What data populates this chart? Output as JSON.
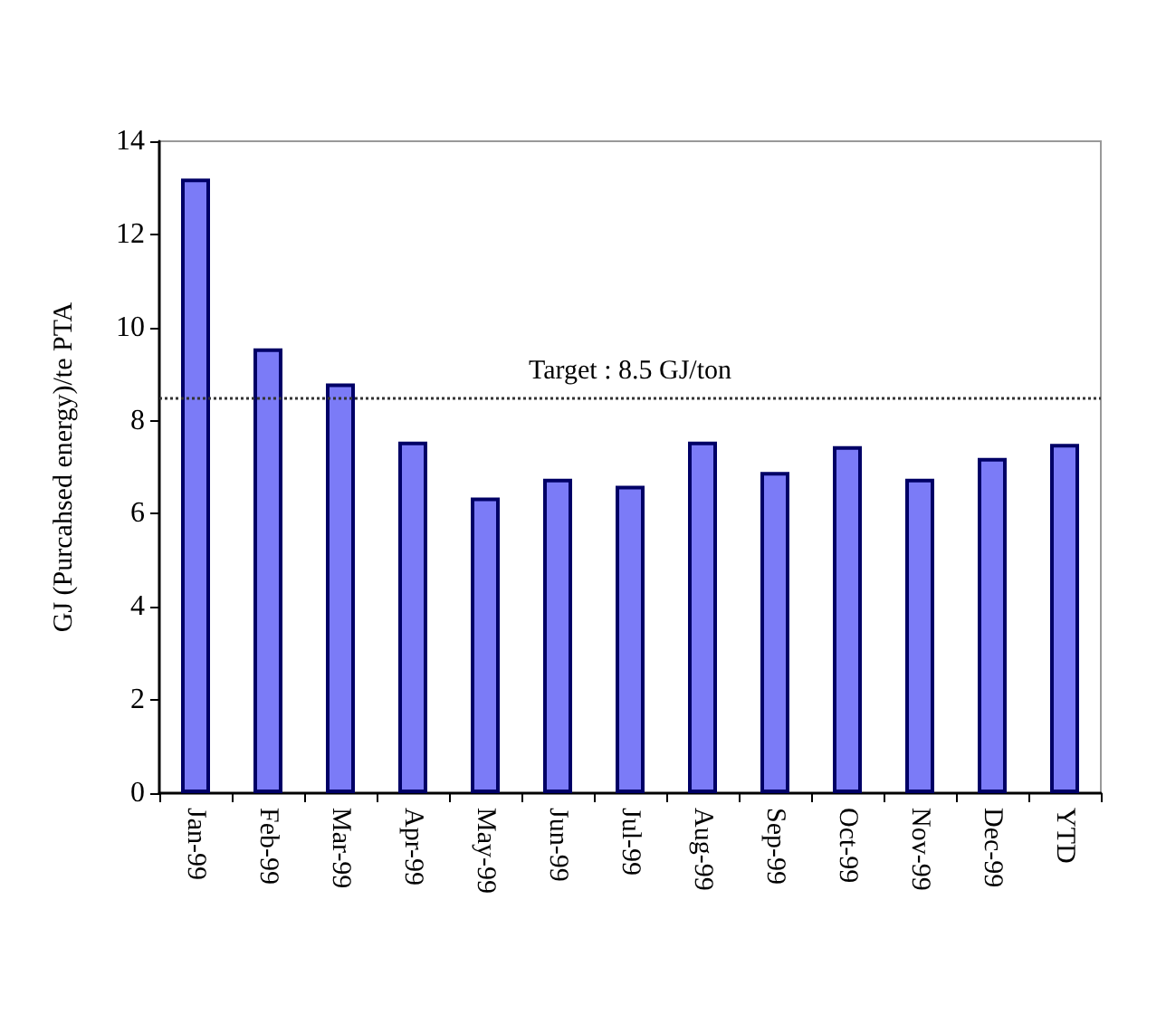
{
  "chart_data": {
    "type": "bar",
    "ylabel": "GJ (Purcahsed energy)/te PTA",
    "categories": [
      "Jan-99",
      "Feb-99",
      "Mar-99",
      "Apr-99",
      "May-99",
      "Jun-99",
      "Jul-99",
      "Aug-99",
      "Sep-99",
      "Oct-99",
      "Nov-99",
      "Dec-99",
      "YTD"
    ],
    "values": [
      13.2,
      9.55,
      8.8,
      7.55,
      6.35,
      6.75,
      6.6,
      7.55,
      6.9,
      7.45,
      6.75,
      7.2,
      7.5
    ],
    "color": "#7b7bf7",
    "ylim": [
      0,
      14
    ],
    "yticks": [
      0,
      2,
      4,
      6,
      8,
      10,
      12,
      14
    ],
    "grid": false,
    "ref_lines": [
      {
        "axis": "y",
        "value": 8.5,
        "label": "Target : 8.5 GJ/ton",
        "line_style": "dotted",
        "color": "#333333"
      }
    ]
  }
}
